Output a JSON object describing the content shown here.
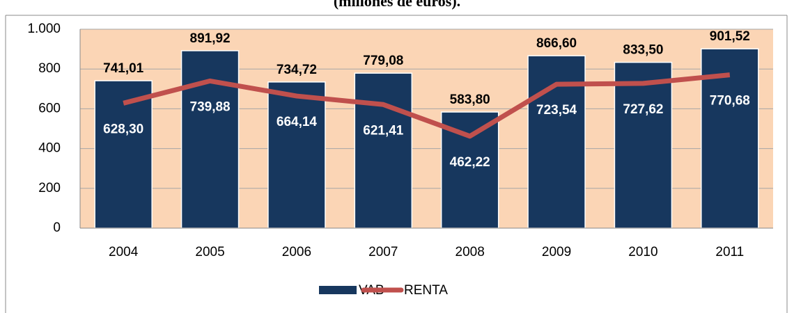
{
  "chart_data": {
    "type": "bar_line",
    "title": "(millones de euros).",
    "categories": [
      "2004",
      "2005",
      "2006",
      "2007",
      "2008",
      "2009",
      "2010",
      "2011"
    ],
    "series": [
      {
        "name": "VAB",
        "type": "bar",
        "color": "#17375e",
        "values": [
          741.01,
          891.92,
          734.72,
          779.08,
          583.8,
          866.6,
          833.5,
          901.52
        ],
        "value_labels": [
          "741,01",
          "891,92",
          "734,72",
          "779,08",
          "583,80",
          "866,60",
          "833,50",
          "901,52"
        ]
      },
      {
        "name": "RENTA",
        "type": "line",
        "color": "#c0504d",
        "values": [
          628.3,
          739.88,
          664.14,
          621.41,
          462.22,
          723.54,
          727.62,
          770.68
        ],
        "value_labels": [
          "628,30",
          "739,88",
          "664,14",
          "621,41",
          "462,22",
          "723,54",
          "727,62",
          "770,68"
        ]
      }
    ],
    "ylim": [
      0,
      1000
    ],
    "yticks": [
      0,
      200,
      400,
      600,
      800,
      {
        "value": 1000,
        "label": "1.000"
      }
    ],
    "grid": true,
    "plot_background": "#fbd5b5",
    "legend": "bottom"
  }
}
